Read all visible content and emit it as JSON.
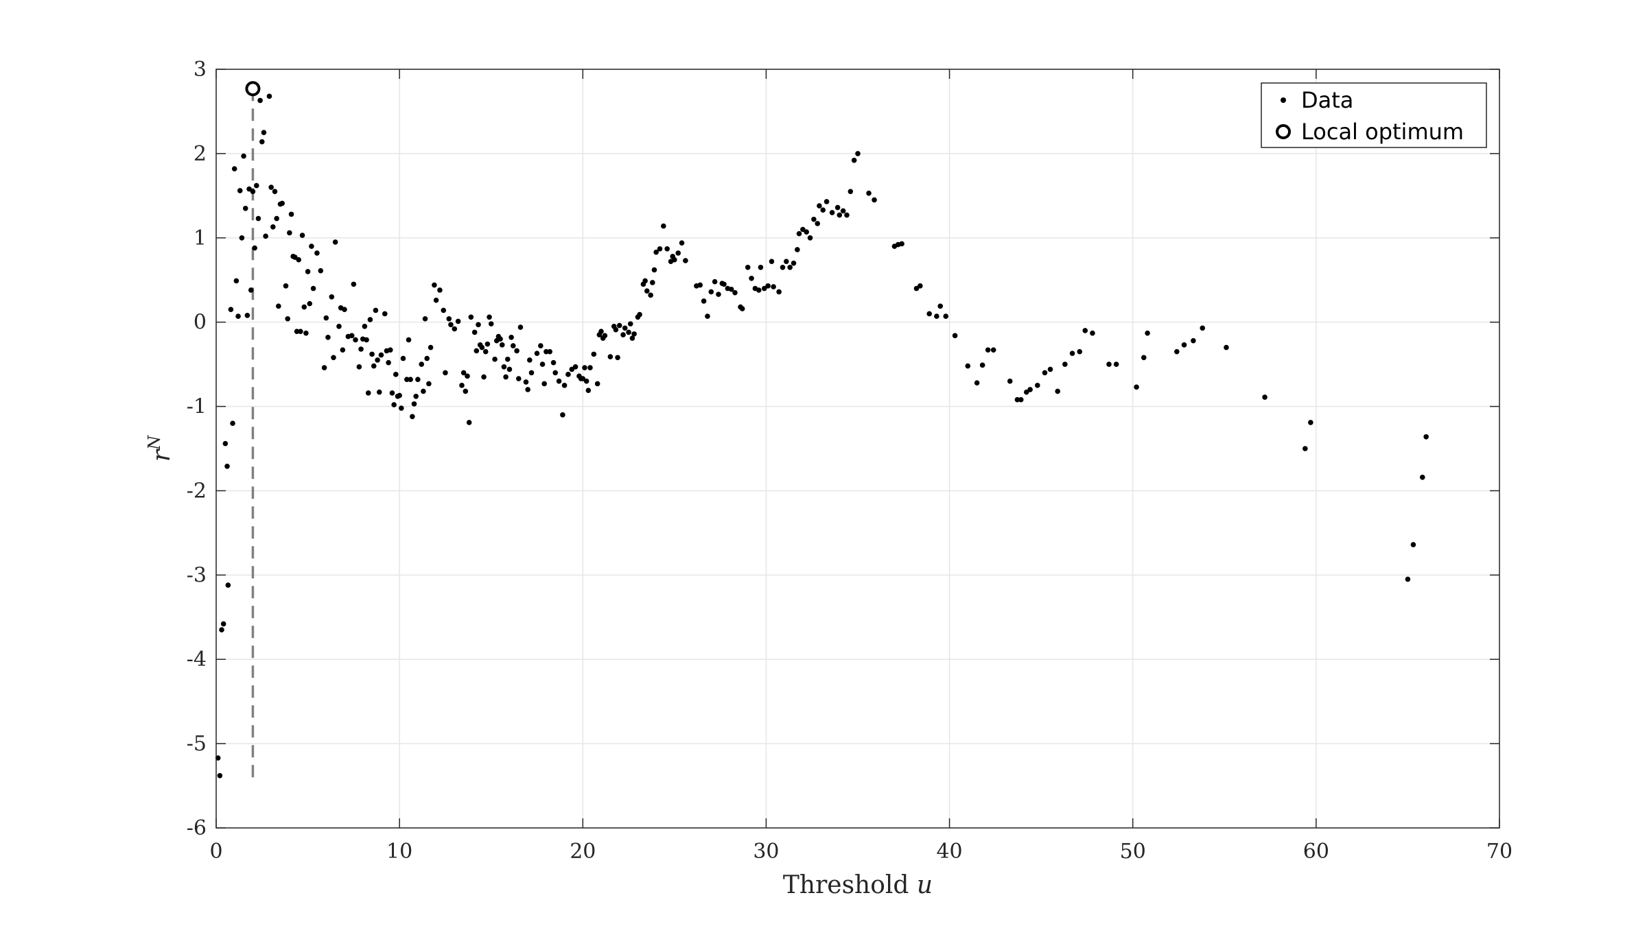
{
  "chart_data": {
    "type": "scatter",
    "xlabel": "Threshold u",
    "ylabel": "r^N",
    "xlim": [
      0,
      70
    ],
    "ylim": [
      -6,
      3
    ],
    "xticks": [
      "0",
      "10",
      "20",
      "30",
      "40",
      "50",
      "60",
      "70"
    ],
    "yticks": [
      "3",
      "2",
      "1",
      "0",
      "-1",
      "-2",
      "-3",
      "-4",
      "-5",
      "-6"
    ],
    "grid": true,
    "legend_position": "top-right",
    "legend": [
      "Data",
      "Local optimum"
    ],
    "colors": {
      "data": "#000000",
      "optimum": "#000000",
      "reference_line": "#808080",
      "grid": "#e6e6e6"
    },
    "local_optimum": {
      "x": 2.0,
      "y": 2.77
    },
    "reference_line": {
      "x": 2.0,
      "y_from": -5.4,
      "y_to": 2.7,
      "style": "dashed"
    },
    "series": [
      {
        "name": "Data",
        "points": [
          [
            0.1,
            -5.17
          ],
          [
            0.2,
            -5.38
          ],
          [
            0.3,
            -3.65
          ],
          [
            0.4,
            -3.58
          ],
          [
            0.5,
            -1.44
          ],
          [
            0.6,
            -1.71
          ],
          [
            0.65,
            -3.12
          ],
          [
            0.8,
            0.15
          ],
          [
            0.9,
            -1.2
          ],
          [
            1.0,
            1.82
          ],
          [
            1.1,
            0.49
          ],
          [
            1.2,
            0.07
          ],
          [
            1.3,
            1.56
          ],
          [
            1.4,
            1.0
          ],
          [
            1.5,
            1.97
          ],
          [
            1.6,
            1.35
          ],
          [
            1.7,
            0.08
          ],
          [
            1.8,
            1.58
          ],
          [
            1.9,
            0.38
          ],
          [
            2.0,
            1.55
          ],
          [
            2.1,
            0.88
          ],
          [
            2.2,
            1.62
          ],
          [
            2.3,
            1.23
          ],
          [
            2.4,
            2.63
          ],
          [
            2.5,
            2.14
          ],
          [
            2.6,
            2.25
          ],
          [
            2.7,
            1.02
          ],
          [
            2.9,
            2.68
          ],
          [
            3.0,
            1.6
          ],
          [
            3.1,
            1.13
          ],
          [
            3.2,
            1.55
          ],
          [
            3.3,
            1.23
          ],
          [
            3.4,
            0.19
          ],
          [
            3.5,
            1.4
          ],
          [
            3.6,
            1.41
          ],
          [
            3.8,
            0.43
          ],
          [
            3.9,
            0.04
          ],
          [
            4.0,
            1.06
          ],
          [
            4.1,
            1.28
          ],
          [
            4.2,
            0.78
          ],
          [
            4.3,
            0.77
          ],
          [
            4.4,
            -0.11
          ],
          [
            4.5,
            0.74
          ],
          [
            4.6,
            -0.11
          ],
          [
            4.7,
            1.03
          ],
          [
            4.8,
            0.18
          ],
          [
            4.9,
            -0.13
          ],
          [
            5.0,
            0.6
          ],
          [
            5.1,
            0.22
          ],
          [
            5.2,
            0.9
          ],
          [
            5.3,
            0.4
          ],
          [
            5.5,
            0.82
          ],
          [
            5.7,
            0.61
          ],
          [
            5.9,
            -0.54
          ],
          [
            6.0,
            0.05
          ],
          [
            6.1,
            -0.18
          ],
          [
            6.3,
            0.3
          ],
          [
            6.4,
            -0.42
          ],
          [
            6.5,
            0.95
          ],
          [
            6.7,
            -0.05
          ],
          [
            6.8,
            0.17
          ],
          [
            6.9,
            -0.33
          ],
          [
            7.0,
            0.15
          ],
          [
            7.2,
            -0.17
          ],
          [
            7.4,
            -0.16
          ],
          [
            7.5,
            0.45
          ],
          [
            7.6,
            -0.21
          ],
          [
            7.8,
            -0.53
          ],
          [
            7.9,
            -0.32
          ],
          [
            8.0,
            -0.2
          ],
          [
            8.1,
            -0.05
          ],
          [
            8.2,
            -0.21
          ],
          [
            8.3,
            -0.84
          ],
          [
            8.4,
            0.03
          ],
          [
            8.5,
            -0.38
          ],
          [
            8.6,
            -0.52
          ],
          [
            8.7,
            0.14
          ],
          [
            8.8,
            -0.45
          ],
          [
            8.9,
            -0.83
          ],
          [
            9.0,
            -0.39
          ],
          [
            9.2,
            0.1
          ],
          [
            9.3,
            -0.34
          ],
          [
            9.4,
            -0.48
          ],
          [
            9.5,
            -0.33
          ],
          [
            9.6,
            -0.84
          ],
          [
            9.7,
            -0.98
          ],
          [
            9.8,
            -0.62
          ],
          [
            9.9,
            -0.88
          ],
          [
            10.0,
            -0.87
          ],
          [
            10.1,
            -1.02
          ],
          [
            10.2,
            -0.43
          ],
          [
            10.4,
            -0.68
          ],
          [
            10.5,
            -0.21
          ],
          [
            10.6,
            -0.68
          ],
          [
            10.7,
            -1.12
          ],
          [
            10.8,
            -0.97
          ],
          [
            10.9,
            -0.88
          ],
          [
            11.0,
            -0.68
          ],
          [
            11.2,
            -0.5
          ],
          [
            11.3,
            -0.82
          ],
          [
            11.4,
            0.04
          ],
          [
            11.5,
            -0.43
          ],
          [
            11.6,
            -0.73
          ],
          [
            11.7,
            -0.3
          ],
          [
            11.9,
            0.44
          ],
          [
            12.0,
            0.26
          ],
          [
            12.2,
            0.38
          ],
          [
            12.4,
            0.14
          ],
          [
            12.5,
            -0.6
          ],
          [
            12.7,
            0.04
          ],
          [
            12.8,
            -0.03
          ],
          [
            13.0,
            -0.08
          ],
          [
            13.2,
            0.01
          ],
          [
            13.4,
            -0.75
          ],
          [
            13.5,
            -0.6
          ],
          [
            13.6,
            -0.82
          ],
          [
            13.7,
            -0.64
          ],
          [
            13.8,
            -1.19
          ],
          [
            13.9,
            0.06
          ],
          [
            14.1,
            -0.12
          ],
          [
            14.2,
            -0.34
          ],
          [
            14.3,
            -0.03
          ],
          [
            14.4,
            -0.27
          ],
          [
            14.5,
            -0.3
          ],
          [
            14.6,
            -0.65
          ],
          [
            14.7,
            -0.35
          ],
          [
            14.8,
            -0.26
          ],
          [
            14.9,
            0.06
          ],
          [
            15.0,
            -0.02
          ],
          [
            15.2,
            -0.44
          ],
          [
            15.3,
            -0.22
          ],
          [
            15.4,
            -0.17
          ],
          [
            15.5,
            -0.2
          ],
          [
            15.6,
            -0.27
          ],
          [
            15.7,
            -0.53
          ],
          [
            15.8,
            -0.65
          ],
          [
            15.9,
            -0.44
          ],
          [
            16.0,
            -0.56
          ],
          [
            16.1,
            -0.18
          ],
          [
            16.2,
            -0.28
          ],
          [
            16.4,
            -0.34
          ],
          [
            16.5,
            -0.67
          ],
          [
            16.6,
            -0.06
          ],
          [
            16.9,
            -0.71
          ],
          [
            17.0,
            -0.8
          ],
          [
            17.1,
            -0.45
          ],
          [
            17.2,
            -0.6
          ],
          [
            17.5,
            -0.37
          ],
          [
            17.7,
            -0.28
          ],
          [
            17.8,
            -0.5
          ],
          [
            17.9,
            -0.73
          ],
          [
            18.0,
            -0.35
          ],
          [
            18.2,
            -0.35
          ],
          [
            18.4,
            -0.48
          ],
          [
            18.5,
            -0.6
          ],
          [
            18.7,
            -0.7
          ],
          [
            18.9,
            -1.1
          ],
          [
            19.0,
            -0.75
          ],
          [
            19.2,
            -0.62
          ],
          [
            19.4,
            -0.56
          ],
          [
            19.6,
            -0.53
          ],
          [
            19.8,
            -0.64
          ],
          [
            19.9,
            -0.67
          ],
          [
            20.0,
            -0.67
          ],
          [
            20.1,
            -0.54
          ],
          [
            20.2,
            -0.7
          ],
          [
            20.3,
            -0.81
          ],
          [
            20.4,
            -0.54
          ],
          [
            20.6,
            -0.38
          ],
          [
            20.8,
            -0.73
          ],
          [
            20.9,
            -0.15
          ],
          [
            21.0,
            -0.11
          ],
          [
            21.1,
            -0.19
          ],
          [
            21.2,
            -0.16
          ],
          [
            21.5,
            -0.41
          ],
          [
            21.7,
            -0.05
          ],
          [
            21.8,
            -0.09
          ],
          [
            21.9,
            -0.42
          ],
          [
            22.0,
            -0.04
          ],
          [
            22.2,
            -0.15
          ],
          [
            22.3,
            -0.07
          ],
          [
            22.5,
            -0.12
          ],
          [
            22.6,
            -0.02
          ],
          [
            22.7,
            -0.19
          ],
          [
            22.8,
            -0.14
          ],
          [
            23.0,
            0.06
          ],
          [
            23.1,
            0.09
          ],
          [
            23.3,
            0.45
          ],
          [
            23.4,
            0.49
          ],
          [
            23.5,
            0.37
          ],
          [
            23.7,
            0.32
          ],
          [
            23.8,
            0.47
          ],
          [
            23.9,
            0.62
          ],
          [
            24.0,
            0.83
          ],
          [
            24.2,
            0.87
          ],
          [
            24.4,
            1.14
          ],
          [
            24.6,
            0.87
          ],
          [
            24.8,
            0.72
          ],
          [
            24.9,
            0.78
          ],
          [
            25.0,
            0.74
          ],
          [
            25.2,
            0.82
          ],
          [
            25.4,
            0.94
          ],
          [
            25.6,
            0.73
          ],
          [
            26.2,
            0.43
          ],
          [
            26.4,
            0.44
          ],
          [
            26.6,
            0.25
          ],
          [
            26.8,
            0.07
          ],
          [
            27.0,
            0.36
          ],
          [
            27.2,
            0.48
          ],
          [
            27.4,
            0.33
          ],
          [
            27.6,
            0.46
          ],
          [
            27.7,
            0.45
          ],
          [
            27.9,
            0.4
          ],
          [
            28.1,
            0.39
          ],
          [
            28.3,
            0.35
          ],
          [
            28.6,
            0.18
          ],
          [
            28.7,
            0.16
          ],
          [
            29.0,
            0.65
          ],
          [
            29.2,
            0.52
          ],
          [
            29.4,
            0.4
          ],
          [
            29.6,
            0.38
          ],
          [
            29.7,
            0.65
          ],
          [
            29.9,
            0.4
          ],
          [
            30.1,
            0.43
          ],
          [
            30.3,
            0.72
          ],
          [
            30.4,
            0.42
          ],
          [
            30.7,
            0.36
          ],
          [
            30.9,
            0.65
          ],
          [
            31.1,
            0.72
          ],
          [
            31.3,
            0.65
          ],
          [
            31.5,
            0.7
          ],
          [
            31.7,
            0.86
          ],
          [
            31.8,
            1.05
          ],
          [
            32.0,
            1.1
          ],
          [
            32.2,
            1.07
          ],
          [
            32.4,
            1.0
          ],
          [
            32.6,
            1.22
          ],
          [
            32.8,
            1.17
          ],
          [
            32.9,
            1.38
          ],
          [
            33.1,
            1.33
          ],
          [
            33.3,
            1.43
          ],
          [
            33.6,
            1.3
          ],
          [
            33.9,
            1.36
          ],
          [
            34.0,
            1.27
          ],
          [
            34.2,
            1.32
          ],
          [
            34.4,
            1.27
          ],
          [
            34.6,
            1.55
          ],
          [
            34.8,
            1.92
          ],
          [
            35.0,
            2.0
          ],
          [
            35.6,
            1.53
          ],
          [
            35.9,
            1.45
          ],
          [
            37.0,
            0.9
          ],
          [
            37.2,
            0.92
          ],
          [
            37.4,
            0.93
          ],
          [
            38.2,
            0.4
          ],
          [
            38.4,
            0.43
          ],
          [
            38.9,
            0.1
          ],
          [
            39.3,
            0.07
          ],
          [
            39.5,
            0.19
          ],
          [
            39.8,
            0.07
          ],
          [
            40.3,
            -0.16
          ],
          [
            41.0,
            -0.52
          ],
          [
            41.5,
            -0.72
          ],
          [
            41.8,
            -0.51
          ],
          [
            42.1,
            -0.33
          ],
          [
            42.4,
            -0.33
          ],
          [
            43.3,
            -0.7
          ],
          [
            43.7,
            -0.92
          ],
          [
            43.9,
            -0.92
          ],
          [
            44.2,
            -0.83
          ],
          [
            44.4,
            -0.8
          ],
          [
            44.8,
            -0.75
          ],
          [
            45.2,
            -0.6
          ],
          [
            45.5,
            -0.56
          ],
          [
            45.9,
            -0.82
          ],
          [
            46.3,
            -0.5
          ],
          [
            46.7,
            -0.37
          ],
          [
            47.1,
            -0.35
          ],
          [
            47.4,
            -0.1
          ],
          [
            47.8,
            -0.13
          ],
          [
            48.7,
            -0.5
          ],
          [
            49.1,
            -0.5
          ],
          [
            50.2,
            -0.77
          ],
          [
            50.6,
            -0.42
          ],
          [
            50.8,
            -0.13
          ],
          [
            52.4,
            -0.35
          ],
          [
            52.8,
            -0.27
          ],
          [
            53.3,
            -0.22
          ],
          [
            53.8,
            -0.07
          ],
          [
            55.1,
            -0.3
          ],
          [
            57.2,
            -0.89
          ],
          [
            59.4,
            -1.5
          ],
          [
            59.7,
            -1.19
          ],
          [
            65.0,
            -3.05
          ],
          [
            65.3,
            -2.64
          ],
          [
            65.8,
            -1.84
          ],
          [
            66.0,
            -1.36
          ]
        ]
      }
    ]
  }
}
